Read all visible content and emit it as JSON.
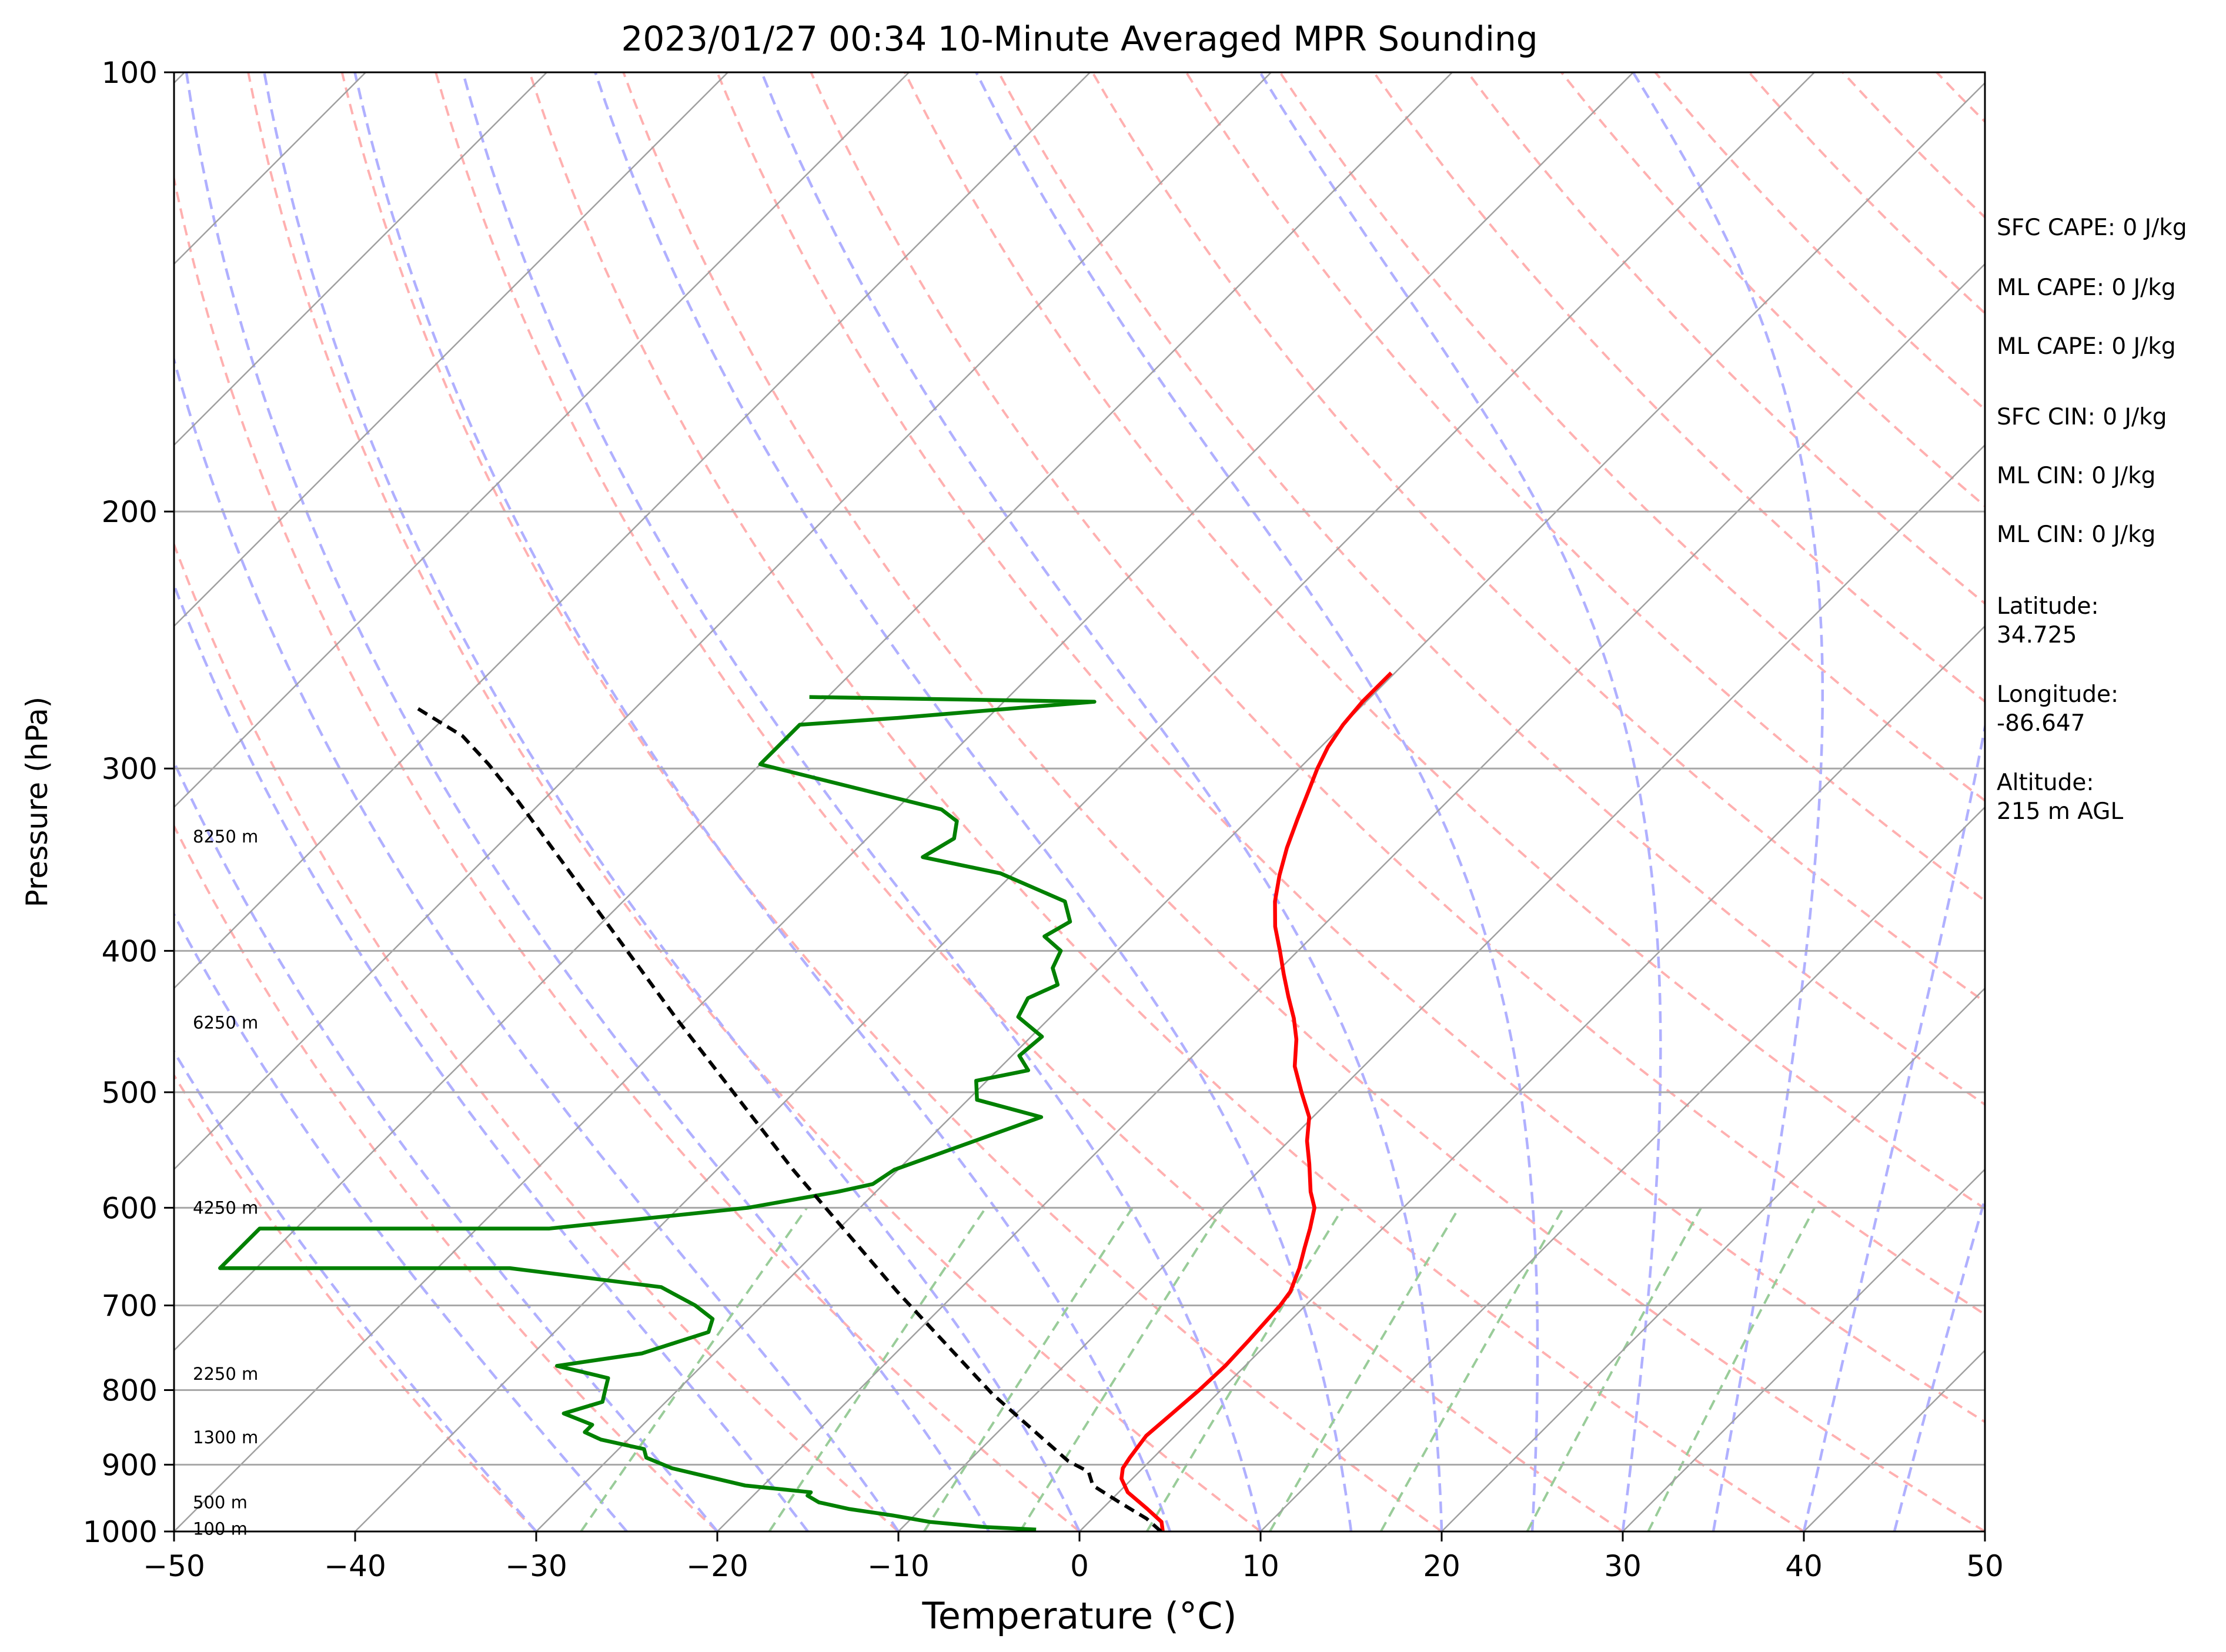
{
  "chart_data": {
    "type": "line",
    "subtype": "skew-t log-p",
    "title": "2023/01/27 00:34 10-Minute Averaged MPR Sounding",
    "xlabel": "Temperature (°C)",
    "ylabel": "Pressure (hPa)",
    "xlim": [
      -50,
      50
    ],
    "ylim": [
      1000,
      100
    ],
    "y_scale": "log",
    "x_ticks": [
      -50,
      -40,
      -30,
      -20,
      -10,
      0,
      10,
      20,
      30,
      40,
      50
    ],
    "x_tick_labels": [
      "−50",
      "−40",
      "−30",
      "−20",
      "−10",
      "0",
      "10",
      "20",
      "30",
      "40",
      "50"
    ],
    "y_ticks": [
      1000,
      900,
      800,
      700,
      600,
      500,
      400,
      300,
      200,
      100
    ],
    "y_tick_labels": [
      "1000",
      "900",
      "800",
      "700",
      "600",
      "500",
      "400",
      "300",
      "200",
      "100"
    ],
    "height_labels": [
      {
        "p": 996,
        "text": "100 m"
      },
      {
        "p": 955,
        "text": "500 m"
      },
      {
        "p": 862,
        "text": "1300 m"
      },
      {
        "p": 780,
        "text": "2250 m"
      },
      {
        "p": 600,
        "text": "4250 m"
      },
      {
        "p": 448,
        "text": "6250 m"
      },
      {
        "p": 334,
        "text": "8250 m"
      }
    ],
    "side_text": [
      "SFC CAPE: 0 J/kg",
      "ML CAPE: 0 J/kg",
      "ML CAPE: 0 J/kg",
      "SFC CIN: 0 J/kg",
      "ML CIN: 0 J/kg",
      "ML CIN: 0 J/kg",
      "Latitude:\n34.725",
      "Longitude:\n-86.647",
      "Altitude:\n215 m AGL"
    ],
    "colors": {
      "temperature": "#ff0000",
      "dewpoint": "#008000",
      "parcel": "#000000",
      "isotherm": "#a0a0a0",
      "isobar": "#a8a8a8",
      "dry_adiabat": "#ffb0b0",
      "moist_adiabat": "#b0b0ff",
      "mixing_ratio": "#99cc99"
    },
    "series": [
      {
        "name": "temperature",
        "points": [
          [
            4.6,
            1000
          ],
          [
            4.0,
            985
          ],
          [
            2.5,
            965
          ],
          [
            0.5,
            940
          ],
          [
            -0.6,
            920
          ],
          [
            -1.1,
            905
          ],
          [
            -1.3,
            890
          ],
          [
            -1.6,
            860
          ],
          [
            -1.4,
            830
          ],
          [
            -1.2,
            800
          ],
          [
            -1.1,
            770
          ],
          [
            -1.2,
            740
          ],
          [
            -1.4,
            700
          ],
          [
            -1.6,
            685
          ],
          [
            -2.4,
            660
          ],
          [
            -3.2,
            640
          ],
          [
            -4.0,
            620
          ],
          [
            -4.9,
            600
          ],
          [
            -6.0,
            585
          ],
          [
            -7.6,
            560
          ],
          [
            -9.0,
            540
          ],
          [
            -10.2,
            520
          ],
          [
            -12.0,
            500
          ],
          [
            -13.8,
            480
          ],
          [
            -15.2,
            460
          ],
          [
            -16.5,
            445
          ],
          [
            -18.0,
            430
          ],
          [
            -19.5,
            415
          ],
          [
            -21.0,
            400
          ],
          [
            -22.6,
            385
          ],
          [
            -24.0,
            370
          ],
          [
            -25.2,
            355
          ],
          [
            -26.3,
            340
          ],
          [
            -27.3,
            325
          ],
          [
            -28.3,
            310
          ],
          [
            -29.0,
            300
          ],
          [
            -29.6,
            290
          ],
          [
            -30.0,
            280
          ],
          [
            -30.2,
            270
          ],
          [
            -30.2,
            262
          ],
          [
            -30.2,
            258
          ]
        ]
      },
      {
        "name": "dewpoint",
        "points": [
          [
            -2.5,
            997
          ],
          [
            -5.5,
            993
          ],
          [
            -8.8,
            985
          ],
          [
            -11.2,
            975
          ],
          [
            -14.0,
            965
          ],
          [
            -16.0,
            955
          ],
          [
            -17.0,
            945
          ],
          [
            -17.0,
            940
          ],
          [
            -21.0,
            930
          ],
          [
            -24.0,
            915
          ],
          [
            -26.0,
            905
          ],
          [
            -28.0,
            890
          ],
          [
            -28.6,
            878
          ],
          [
            -31.5,
            865
          ],
          [
            -32.8,
            855
          ],
          [
            -32.8,
            845
          ],
          [
            -35.0,
            830
          ],
          [
            -33.5,
            815
          ],
          [
            -34.0,
            800
          ],
          [
            -34.5,
            785
          ],
          [
            -38.0,
            770
          ],
          [
            -34.0,
            755
          ],
          [
            -31.5,
            730
          ],
          [
            -32.0,
            715
          ],
          [
            -33.7,
            700
          ],
          [
            -36.6,
            680
          ],
          [
            -46.0,
            660
          ],
          [
            -62.0,
            660
          ],
          [
            -62.0,
            620
          ],
          [
            -46.0,
            620
          ],
          [
            -36.2,
            600
          ],
          [
            -32.1,
            585
          ],
          [
            -30.6,
            578
          ],
          [
            -30.2,
            565
          ],
          [
            -25.0,
            520
          ],
          [
            -29.5,
            506
          ],
          [
            -30.6,
            491
          ],
          [
            -28.3,
            483
          ],
          [
            -29.6,
            472
          ],
          [
            -29.4,
            458
          ],
          [
            -31.8,
            444
          ],
          [
            -32.3,
            431
          ],
          [
            -31.4,
            422
          ],
          [
            -32.6,
            411
          ],
          [
            -33.1,
            400
          ],
          [
            -34.8,
            391
          ],
          [
            -34.2,
            382
          ],
          [
            -35.6,
            370
          ],
          [
            -40.7,
            354
          ],
          [
            -45.9,
            345
          ],
          [
            -45.2,
            335
          ],
          [
            -46.0,
            326
          ],
          [
            -47.5,
            320
          ],
          [
            -60.0,
            298
          ],
          [
            -60.0,
            280
          ],
          [
            -55.0,
            277
          ],
          [
            -45.0,
            270
          ],
          [
            -61.0,
            268
          ]
        ]
      },
      {
        "name": "parcel",
        "points": [
          [
            4.5,
            1000
          ],
          [
            3.0,
            980
          ],
          [
            0.6,
            955
          ],
          [
            -1.8,
            930
          ],
          [
            -2.8,
            910
          ],
          [
            -4.5,
            895
          ],
          [
            -12.4,
            805
          ],
          [
            -23.3,
            685
          ],
          [
            -35.8,
            565
          ],
          [
            -50.6,
            445
          ],
          [
            -71.5,
            315
          ],
          [
            -75.0,
            298
          ],
          [
            -78.0,
            285
          ],
          [
            -82.3,
            272
          ]
        ]
      }
    ]
  }
}
